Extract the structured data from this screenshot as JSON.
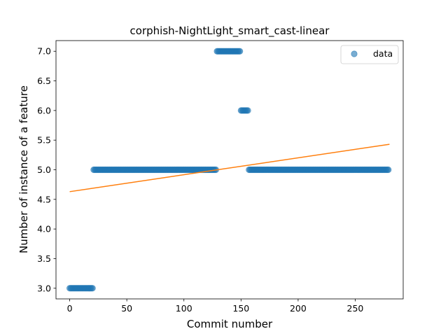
{
  "chart_data": {
    "type": "scatter",
    "title": "corphish-NightLight_smart_cast-linear",
    "xlabel": "Commit number",
    "ylabel": "Number of instance of a feature",
    "xlim": [
      -12,
      292
    ],
    "ylim": [
      2.82,
      7.18
    ],
    "xticks": [
      0,
      50,
      100,
      150,
      200,
      250
    ],
    "xtick_labels": [
      "0",
      "50",
      "100",
      "150",
      "200",
      "250"
    ],
    "yticks": [
      3.0,
      3.5,
      4.0,
      4.5,
      5.0,
      5.5,
      6.0,
      6.5,
      7.0
    ],
    "ytick_labels": [
      "3.0",
      "3.5",
      "4.0",
      "4.5",
      "5.0",
      "5.5",
      "6.0",
      "6.5",
      "7.0"
    ],
    "grid": false,
    "legend": {
      "position": "top-right",
      "entries": [
        "data"
      ]
    },
    "series": [
      {
        "name": "data",
        "kind": "scatter",
        "color": "#1f77b4",
        "opacity": 0.6,
        "runs": [
          {
            "x_start": 0,
            "x_end": 21,
            "y": 3
          },
          {
            "x_start": 21,
            "x_end": 129,
            "y": 5
          },
          {
            "x_start": 129,
            "x_end": 150,
            "y": 7
          },
          {
            "x_start": 150,
            "x_end": 157,
            "y": 6
          },
          {
            "x_start": 157,
            "x_end": 280,
            "y": 5
          }
        ]
      },
      {
        "name": "",
        "kind": "line",
        "color": "#ff7f0e",
        "x": [
          0,
          280
        ],
        "y": [
          4.63,
          5.43
        ]
      }
    ]
  }
}
